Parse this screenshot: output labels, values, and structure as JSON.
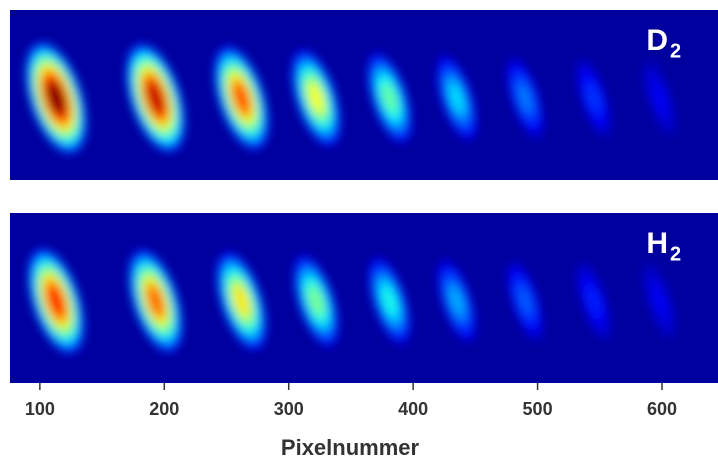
{
  "chart_data": {
    "type": "spot-image",
    "xlabel": "Pixelnummer",
    "xlim": [
      76,
      645
    ],
    "xticks": [
      100,
      200,
      300,
      400,
      500,
      600
    ],
    "panels": [
      {
        "label": "D",
        "subscript": "2",
        "spot_x": [
          113,
          193,
          262,
          322,
          381,
          435,
          490,
          545,
          598
        ],
        "intensity": [
          1.0,
          0.93,
          0.8,
          0.62,
          0.48,
          0.35,
          0.25,
          0.18,
          0.12
        ]
      },
      {
        "label": "H",
        "subscript": "2",
        "spot_x": [
          113,
          193,
          262,
          322,
          381,
          435,
          490,
          545,
          598
        ],
        "intensity": [
          0.85,
          0.78,
          0.65,
          0.5,
          0.4,
          0.3,
          0.22,
          0.16,
          0.12
        ]
      }
    ]
  }
}
